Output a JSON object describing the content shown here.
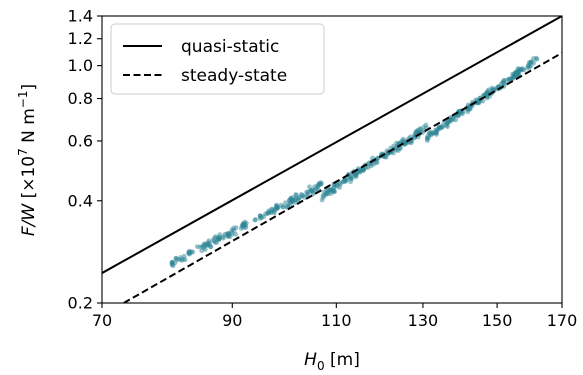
{
  "chart_data": {
    "type": "scatter",
    "x_scale": "log",
    "y_scale": "log",
    "xlim": [
      70,
      170
    ],
    "ylim": [
      0.2,
      1.4
    ],
    "x_ticks": [
      70,
      90,
      110,
      130,
      150,
      170
    ],
    "x_tick_labels": [
      "70",
      "90",
      "110",
      "130",
      "150",
      "170"
    ],
    "y_ticks": [
      0.2,
      0.4,
      0.6,
      0.8,
      1.0,
      1.2,
      1.4
    ],
    "y_tick_labels": [
      "0.2",
      "0.4",
      "0.6",
      "0.8",
      "1.0",
      "1.2",
      "1.4"
    ],
    "xlabel": {
      "base": "H",
      "sub": "0",
      "unit": " [m]"
    },
    "ylabel": {
      "var": "F/W",
      "pre": " [×10",
      "exp1": "7",
      "mid": " N m",
      "exp2": "−1",
      "post": "]"
    },
    "grid": false,
    "legend_position": "upper-left",
    "legend": [
      {
        "label": "quasi-static",
        "style": "solid"
      },
      {
        "label": "steady-state",
        "style": "dashed"
      }
    ],
    "lines": [
      {
        "name": "quasi-static",
        "style": "solid",
        "color": "#000000",
        "points": [
          [
            70,
            0.245
          ],
          [
            170,
            1.4
          ]
        ]
      },
      {
        "name": "steady-state",
        "style": "dashed",
        "color": "#000000",
        "points": [
          [
            73,
            0.2
          ],
          [
            170,
            1.09
          ]
        ]
      }
    ],
    "scatter_color": "#2e8595",
    "scatter_segments": [
      {
        "x_range": [
          80,
          107
        ],
        "y_start": 0.262,
        "y_end": 0.445,
        "spread": 0.035,
        "count": 170
      },
      {
        "x_range": [
          107,
          131
        ],
        "y_start": 0.415,
        "y_end": 0.655,
        "spread": 0.035,
        "count": 160
      },
      {
        "x_range": [
          131,
          162
        ],
        "y_start": 0.615,
        "y_end": 1.045,
        "spread": 0.03,
        "count": 170
      }
    ]
  }
}
